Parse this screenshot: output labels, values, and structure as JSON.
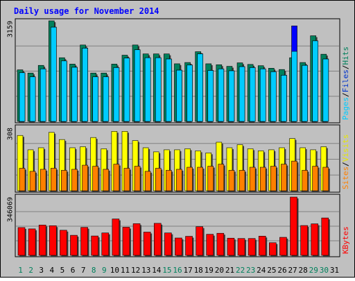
{
  "chart_data": [
    {
      "type": "bar",
      "panel": "pages-files-hits",
      "title": "Daily usage for November 2014",
      "categories": [
        "1",
        "2",
        "3",
        "4",
        "5",
        "6",
        "7",
        "8",
        "9",
        "10",
        "11",
        "12",
        "13",
        "14",
        "15",
        "16",
        "17",
        "18",
        "19",
        "20",
        "21",
        "22",
        "23",
        "24",
        "25",
        "26",
        "27",
        "28",
        "29",
        "30",
        "31"
      ],
      "ymax_label": "3159",
      "ylim": [
        0,
        3159
      ],
      "series": [
        {
          "name": "Hits",
          "values": [
            1620,
            1520,
            1760,
            3159,
            2000,
            1800,
            2400,
            1520,
            1520,
            1800,
            2080,
            2400,
            2120,
            2120,
            2120,
            1810,
            1850,
            2190,
            1810,
            1780,
            1730,
            1840,
            1790,
            1750,
            1670,
            1630,
            2000,
            1850,
            2690,
            2110,
            0
          ]
        },
        {
          "name": "Files",
          "values": [
            1530,
            1400,
            1650,
            2960,
            1900,
            1700,
            2300,
            1400,
            1400,
            1690,
            1990,
            2250,
            2000,
            2000,
            1960,
            1610,
            1770,
            2120,
            1600,
            1650,
            1590,
            1720,
            1690,
            1650,
            1560,
            1450,
            3000,
            1760,
            2530,
            1960,
            0
          ]
        },
        {
          "name": "Pages",
          "values": [
            1530,
            1400,
            1650,
            2960,
            1900,
            1700,
            2300,
            1400,
            1400,
            1690,
            1990,
            2250,
            2000,
            2000,
            1960,
            1610,
            1770,
            2120,
            1600,
            1650,
            1590,
            1720,
            1690,
            1650,
            1560,
            1450,
            2200,
            1760,
            2530,
            1960,
            0
          ]
        }
      ],
      "right_labels": [
        {
          "text": "Pages",
          "color": "#00ccff"
        },
        {
          "text": "Files",
          "color": "#0033cc"
        },
        {
          "text": "Hits",
          "color": "#00805c"
        }
      ],
      "separator": "/"
    },
    {
      "type": "bar",
      "panel": "sites-visits",
      "categories": [
        "1",
        "2",
        "3",
        "4",
        "5",
        "6",
        "7",
        "8",
        "9",
        "10",
        "11",
        "12",
        "13",
        "14",
        "15",
        "16",
        "17",
        "18",
        "19",
        "20",
        "21",
        "22",
        "23",
        "24",
        "25",
        "26",
        "27",
        "28",
        "29",
        "30",
        "31"
      ],
      "ymax_label": "308",
      "ylim": [
        0,
        308
      ],
      "series": [
        {
          "name": "Visits",
          "values": [
            270,
            200,
            210,
            285,
            250,
            210,
            215,
            260,
            205,
            290,
            290,
            245,
            210,
            190,
            200,
            200,
            205,
            195,
            185,
            237,
            210,
            225,
            205,
            195,
            200,
            210,
            255,
            210,
            200,
            215,
            0
          ]
        },
        {
          "name": "Sites",
          "values": [
            110,
            95,
            105,
            110,
            100,
            105,
            125,
            120,
            105,
            130,
            110,
            120,
            95,
            110,
            100,
            105,
            115,
            115,
            120,
            130,
            100,
            100,
            115,
            115,
            120,
            130,
            145,
            100,
            120,
            115,
            0
          ]
        }
      ],
      "right_labels": [
        {
          "text": "Sites",
          "color": "#ff8000"
        },
        {
          "text": "Visits",
          "color": "#e6e600"
        }
      ],
      "separator": "/"
    },
    {
      "type": "bar",
      "panel": "kbytes",
      "categories": [
        "1",
        "2",
        "3",
        "4",
        "5",
        "6",
        "7",
        "8",
        "9",
        "10",
        "11",
        "12",
        "13",
        "14",
        "15",
        "16",
        "17",
        "18",
        "19",
        "20",
        "21",
        "22",
        "23",
        "24",
        "25",
        "26",
        "27",
        "28",
        "29",
        "30",
        "31"
      ],
      "ymax_label": "346069",
      "ylim": [
        0,
        346069
      ],
      "series": [
        {
          "name": "KBytes",
          "values": [
            165000,
            157000,
            180000,
            176000,
            149000,
            119000,
            166000,
            115000,
            133000,
            216000,
            167000,
            188000,
            138000,
            190000,
            133000,
            103000,
            113000,
            170000,
            125000,
            131000,
            102000,
            100000,
            100000,
            114000,
            75000,
            107000,
            346069,
            177000,
            187000,
            222000,
            0
          ]
        }
      ],
      "right_labels": [
        {
          "text": "KBytes",
          "color": "#ff0000"
        }
      ]
    }
  ],
  "colors": {
    "background": "#c0c0c0",
    "hits": "#00805c",
    "files": "#0000ff",
    "pages": "#00ccff",
    "visits": "#ffff00",
    "sites": "#ff8000",
    "kbytes": "#ff0000",
    "title": "#0000ff",
    "weekend_day": "#00805c",
    "weekday": "#000000"
  },
  "weekend_days": [
    1,
    2,
    8,
    9,
    15,
    16,
    22,
    23,
    29,
    30
  ]
}
